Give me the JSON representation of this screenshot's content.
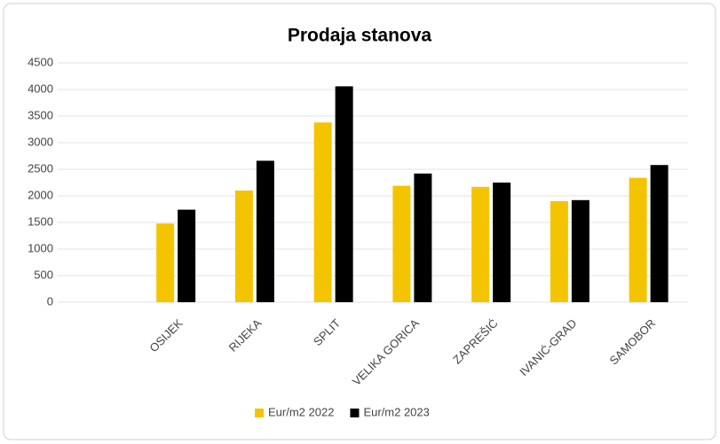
{
  "chart_data": {
    "type": "bar",
    "title": "Prodaja stanova",
    "categories": [
      null,
      "OSIJEK",
      "RIJEKA",
      "SPLIT",
      "VELIKA GORICA",
      "ZAPREŠIĆ",
      "IVANIĆ-GRAD",
      "SAMOBOR"
    ],
    "series": [
      {
        "name": "Eur/m2 2022",
        "color": "#f5c400",
        "values": [
          null,
          1480,
          2100,
          3380,
          2190,
          2170,
          1900,
          2340
        ]
      },
      {
        "name": "Eur/m2 2023",
        "color": "#000000",
        "values": [
          null,
          1740,
          2660,
          4060,
          2420,
          2250,
          1920,
          2580
        ]
      }
    ],
    "ylim": [
      0,
      4500
    ],
    "yticks": [
      0,
      500,
      1000,
      1500,
      2000,
      2500,
      3000,
      3500,
      4000,
      4500
    ],
    "grid": true,
    "legend": "bottom"
  }
}
